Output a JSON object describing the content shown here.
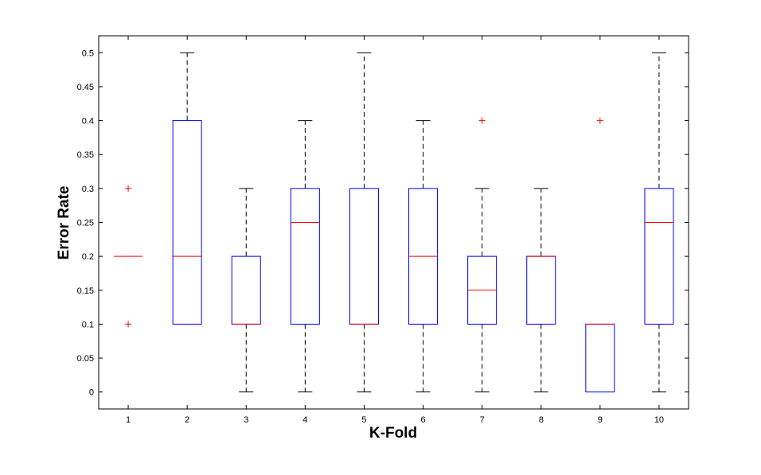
{
  "chart_data": {
    "type": "boxplot",
    "title": "",
    "xlabel": "K-Fold",
    "ylabel": "Error Rate",
    "ylim": [
      -0.025,
      0.525
    ],
    "yticks": [
      0,
      0.05,
      0.1,
      0.15,
      0.2,
      0.25,
      0.3,
      0.35,
      0.4,
      0.45,
      0.5
    ],
    "ytick_labels": [
      "0",
      "0.05",
      "0.1",
      "0.15",
      "0.2",
      "0.25",
      "0.3",
      "0.35",
      "0.4",
      "0.45",
      "0.5"
    ],
    "categories": [
      "1",
      "2",
      "3",
      "4",
      "5",
      "6",
      "7",
      "8",
      "9",
      "10"
    ],
    "boxes": [
      {
        "min": 0.2,
        "q1": 0.2,
        "median": 0.2,
        "q3": 0.2,
        "max": 0.2,
        "outliers": [
          0.1,
          0.3
        ]
      },
      {
        "min": 0.1,
        "q1": 0.1,
        "median": 0.2,
        "q3": 0.4,
        "max": 0.5,
        "outliers": []
      },
      {
        "min": 0.0,
        "q1": 0.1,
        "median": 0.1,
        "q3": 0.2,
        "max": 0.3,
        "outliers": []
      },
      {
        "min": 0.0,
        "q1": 0.1,
        "median": 0.25,
        "q3": 0.3,
        "max": 0.4,
        "outliers": []
      },
      {
        "min": 0.0,
        "q1": 0.1,
        "median": 0.1,
        "q3": 0.3,
        "max": 0.5,
        "outliers": []
      },
      {
        "min": 0.0,
        "q1": 0.1,
        "median": 0.2,
        "q3": 0.3,
        "max": 0.4,
        "outliers": []
      },
      {
        "min": 0.0,
        "q1": 0.1,
        "median": 0.15,
        "q3": 0.2,
        "max": 0.3,
        "outliers": [
          0.4
        ]
      },
      {
        "min": 0.0,
        "q1": 0.1,
        "median": 0.2,
        "q3": 0.2,
        "max": 0.3,
        "outliers": []
      },
      {
        "min": 0.0,
        "q1": 0.0,
        "median": 0.1,
        "q3": 0.1,
        "max": 0.1,
        "outliers": [
          0.4
        ]
      },
      {
        "min": 0.0,
        "q1": 0.1,
        "median": 0.25,
        "q3": 0.3,
        "max": 0.5,
        "outliers": []
      }
    ],
    "grid": false,
    "colors": {
      "box": "#0000ff",
      "median": "#ff0000",
      "whisker": "#000000",
      "outlier": "#ff0000",
      "axes": "#000000"
    }
  }
}
